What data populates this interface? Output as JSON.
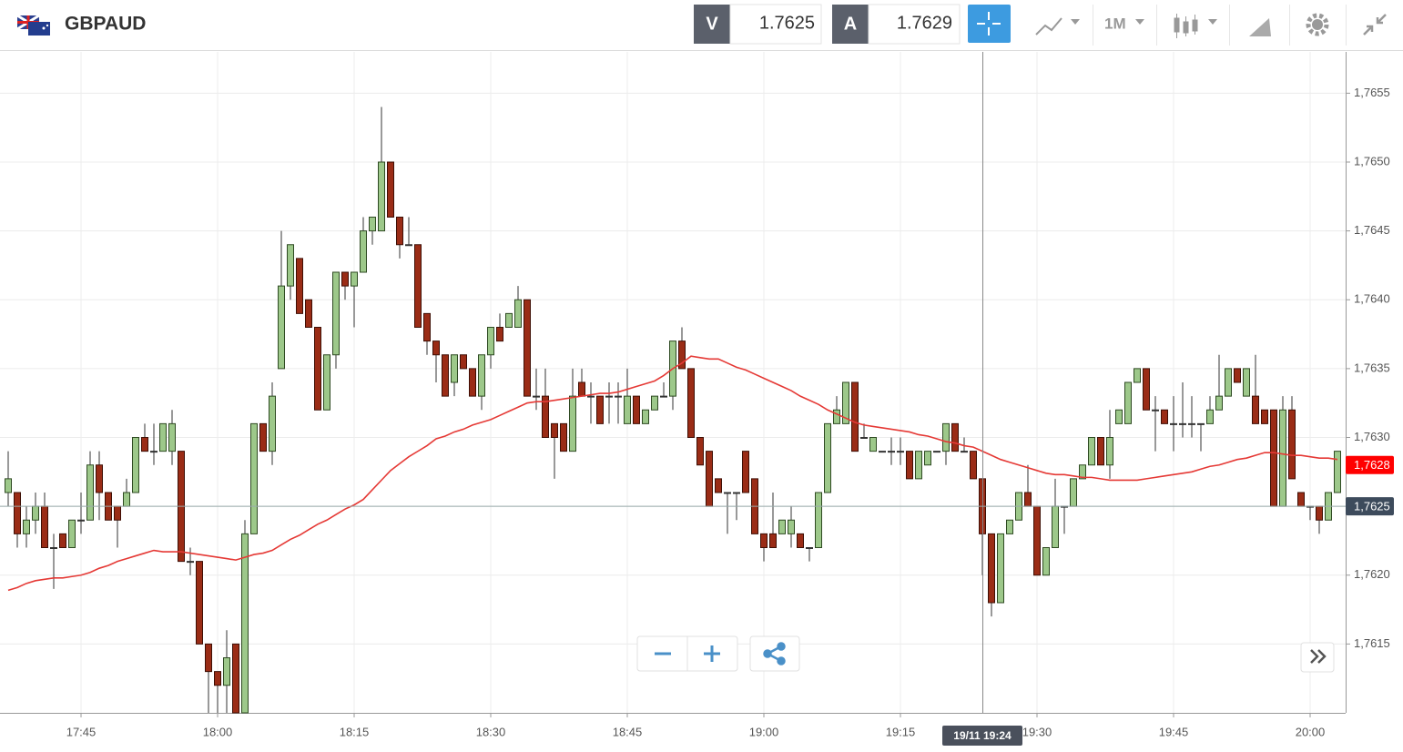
{
  "toolbar": {
    "symbol": "GBPAUD",
    "sell_label": "V",
    "sell_price": "1.7625",
    "buy_label": "A",
    "buy_price": "1.7629",
    "timeframe": "1M"
  },
  "chart_data": {
    "type": "candlestick",
    "categories": [
      null,
      null,
      null,
      null,
      null,
      null,
      null,
      null,
      "17:45",
      null,
      null,
      null,
      null,
      null,
      null,
      null,
      null,
      null,
      null,
      null,
      null,
      null,
      null,
      "18:00",
      null,
      null,
      null,
      null,
      null,
      null,
      null,
      null,
      null,
      null,
      null,
      null,
      null,
      null,
      "18:15",
      null,
      null,
      null,
      null,
      null,
      null,
      null,
      null,
      null,
      null,
      null,
      null,
      null,
      null,
      "18:30",
      null,
      null,
      null,
      null,
      null,
      null,
      null,
      null,
      null,
      null,
      null,
      null,
      null,
      null,
      "18:45",
      null,
      null,
      null,
      null,
      null,
      null,
      null,
      null,
      null,
      null,
      null,
      null,
      null,
      null,
      "19:00",
      null,
      null,
      null,
      null,
      null,
      null,
      null,
      null,
      null,
      null,
      null,
      null,
      null,
      null,
      "19:15",
      null,
      null,
      null,
      null,
      null,
      null,
      null,
      null,
      null,
      null,
      null,
      null,
      null,
      null,
      "19:30",
      null,
      null,
      null,
      null,
      null,
      null,
      null,
      null,
      null,
      null,
      null,
      null,
      null,
      null,
      "19:45",
      null,
      null,
      null,
      null,
      null,
      null,
      null,
      null,
      null,
      null,
      null,
      null,
      null,
      null,
      "20:00",
      null,
      null,
      null
    ],
    "open": [
      1.7626,
      1.7626,
      1.7623,
      1.7624,
      1.7625,
      1.7622,
      1.7623,
      1.7622,
      1.7624,
      1.7624,
      1.7628,
      1.7626,
      1.7625,
      1.7625,
      1.7626,
      1.763,
      1.7629,
      1.7629,
      1.7629,
      1.7629,
      1.7621,
      1.7621,
      1.7615,
      1.7613,
      1.7612,
      1.7615,
      1.761,
      1.7623,
      1.7631,
      1.7629,
      1.7635,
      1.7641,
      1.7643,
      1.764,
      1.7638,
      1.7632,
      1.7636,
      1.7642,
      1.7641,
      1.7642,
      1.7645,
      1.7645,
      1.765,
      1.7646,
      1.7644,
      1.7644,
      1.7639,
      1.7637,
      1.7636,
      1.7634,
      1.7636,
      1.7635,
      1.7633,
      1.7636,
      1.7638,
      1.7638,
      1.7638,
      1.764,
      1.7633,
      1.7633,
      1.7631,
      1.7631,
      1.7629,
      1.7634,
      1.7633,
      1.7633,
      1.7633,
      1.7633,
      1.7631,
      1.7633,
      1.7631,
      1.7632,
      1.7633,
      1.7633,
      1.7637,
      1.7635,
      1.763,
      1.7629,
      1.7627,
      1.7626,
      1.7626,
      1.7629,
      1.7627,
      1.7623,
      1.7623,
      1.7623,
      1.7623,
      1.7623,
      1.7622,
      1.7622,
      1.7626,
      1.7631,
      1.7631,
      1.7634,
      1.763,
      1.7629,
      1.7629,
      1.7629,
      1.7629,
      1.7629,
      1.7627,
      1.7628,
      1.7629,
      1.7629,
      1.7631,
      1.7629,
      1.7629,
      1.7627,
      1.7623,
      1.7618,
      1.7623,
      1.7624,
      1.7626,
      1.7625,
      1.762,
      1.7622,
      1.7625,
      1.7625,
      1.7627,
      1.7628,
      1.763,
      1.7628,
      1.7631,
      1.7631,
      1.7634,
      1.7635,
      1.7632,
      1.7632,
      1.7631,
      1.7631,
      1.7631,
      1.7631,
      1.7631,
      1.7632,
      1.7633,
      1.7635,
      1.7633,
      1.7633,
      1.7632,
      1.7632,
      1.7625,
      1.7632,
      1.7626,
      1.7625,
      1.7625,
      1.7624,
      1.7626
    ],
    "high": [
      1.7629,
      1.7626,
      1.7625,
      1.7626,
      1.7626,
      1.7623,
      1.7623,
      1.7624,
      1.7626,
      1.7629,
      1.7629,
      1.7626,
      1.7625,
      1.7627,
      1.763,
      1.7631,
      1.7631,
      1.7631,
      1.7632,
      1.7629,
      1.7622,
      1.7621,
      1.7615,
      1.7613,
      1.7616,
      1.7615,
      1.7624,
      1.7631,
      1.7631,
      1.7634,
      1.7645,
      1.7644,
      1.7643,
      1.764,
      1.7638,
      1.7636,
      1.7642,
      1.7642,
      1.7642,
      1.7646,
      1.7646,
      1.7654,
      1.765,
      1.7646,
      1.7646,
      1.7644,
      1.7639,
      1.7637,
      1.7636,
      1.7636,
      1.7636,
      1.7635,
      1.7636,
      1.7638,
      1.7639,
      1.7639,
      1.7641,
      1.764,
      1.7635,
      1.7635,
      1.7631,
      1.7631,
      1.7635,
      1.7635,
      1.7634,
      1.7633,
      1.7634,
      1.7634,
      1.7635,
      1.7633,
      1.7632,
      1.7633,
      1.7634,
      1.7637,
      1.7638,
      1.7635,
      1.763,
      1.7629,
      1.7627,
      1.7626,
      1.7626,
      1.7629,
      1.7627,
      1.7623,
      1.7626,
      1.7624,
      1.7625,
      1.7623,
      1.7622,
      1.7626,
      1.7631,
      1.7633,
      1.7634,
      1.7634,
      1.7631,
      1.763,
      1.7629,
      1.763,
      1.763,
      1.7629,
      1.7629,
      1.7629,
      1.7629,
      1.7631,
      1.7631,
      1.763,
      1.7629,
      1.7627,
      1.7623,
      1.7623,
      1.7624,
      1.7626,
      1.7628,
      1.7625,
      1.7622,
      1.7627,
      1.7625,
      1.7627,
      1.7628,
      1.763,
      1.763,
      1.7632,
      1.7632,
      1.7634,
      1.7635,
      1.7635,
      1.7633,
      1.7632,
      1.7633,
      1.7634,
      1.7633,
      1.7631,
      1.7633,
      1.7636,
      1.7635,
      1.7635,
      1.7635,
      1.7636,
      1.7632,
      1.7632,
      1.7633,
      1.7633,
      1.7626,
      1.7625,
      1.7625,
      1.7626,
      1.7629
    ],
    "low": [
      1.7625,
      1.7622,
      1.7622,
      1.7623,
      1.7622,
      1.7619,
      1.7622,
      1.7622,
      1.7623,
      1.7624,
      1.7624,
      1.7624,
      1.7622,
      1.7625,
      1.7626,
      1.7629,
      1.7628,
      1.7629,
      1.7628,
      1.7621,
      1.762,
      1.7615,
      1.761,
      1.761,
      1.761,
      1.761,
      1.761,
      1.7623,
      1.7629,
      1.7628,
      1.7635,
      1.764,
      1.7639,
      1.7638,
      1.7632,
      1.7632,
      1.7635,
      1.764,
      1.7638,
      1.7642,
      1.7644,
      1.7645,
      1.7646,
      1.7643,
      1.7644,
      1.7638,
      1.7636,
      1.7634,
      1.7633,
      1.7633,
      1.7635,
      1.7633,
      1.7632,
      1.7635,
      1.7637,
      1.7638,
      1.7638,
      1.7633,
      1.7632,
      1.763,
      1.7627,
      1.7629,
      1.7629,
      1.7633,
      1.7631,
      1.7631,
      1.7631,
      1.7631,
      1.7631,
      1.7631,
      1.7631,
      1.7632,
      1.7633,
      1.7632,
      1.7635,
      1.763,
      1.7628,
      1.7625,
      1.7626,
      1.7623,
      1.7624,
      1.7626,
      1.7623,
      1.7621,
      1.7622,
      1.7623,
      1.7622,
      1.7622,
      1.7621,
      1.7622,
      1.7626,
      1.7631,
      1.7631,
      1.7629,
      1.763,
      1.7629,
      1.7629,
      1.7628,
      1.7628,
      1.7627,
      1.7627,
      1.7628,
      1.7629,
      1.7628,
      1.7629,
      1.7629,
      1.7627,
      1.762,
      1.7617,
      1.7618,
      1.7623,
      1.7624,
      1.7625,
      1.762,
      1.762,
      1.7622,
      1.7623,
      1.7625,
      1.7627,
      1.7628,
      1.7628,
      1.7627,
      1.7631,
      1.7631,
      1.7634,
      1.7632,
      1.7629,
      1.7631,
      1.7629,
      1.763,
      1.763,
      1.7629,
      1.7631,
      1.7632,
      1.7633,
      1.7634,
      1.7633,
      1.7631,
      1.7631,
      1.7625,
      1.7625,
      1.7627,
      1.7625,
      1.7624,
      1.7623,
      1.7624,
      1.7626
    ],
    "close": [
      1.7627,
      1.7623,
      1.7624,
      1.7625,
      1.7622,
      1.7622,
      1.7622,
      1.7624,
      1.7624,
      1.7628,
      1.7626,
      1.7624,
      1.7624,
      1.7626,
      1.763,
      1.7629,
      1.7629,
      1.7631,
      1.7631,
      1.7621,
      1.7621,
      1.7615,
      1.7613,
      1.7612,
      1.7614,
      1.761,
      1.7623,
      1.7631,
      1.7629,
      1.7633,
      1.7641,
      1.7644,
      1.7639,
      1.7638,
      1.7632,
      1.7636,
      1.7642,
      1.7641,
      1.7642,
      1.7645,
      1.7646,
      1.765,
      1.7646,
      1.7644,
      1.7644,
      1.7638,
      1.7637,
      1.7636,
      1.7633,
      1.7636,
      1.7635,
      1.7633,
      1.7636,
      1.7638,
      1.7637,
      1.7639,
      1.764,
      1.7633,
      1.7633,
      1.763,
      1.763,
      1.7629,
      1.7633,
      1.7633,
      1.7633,
      1.7631,
      1.7633,
      1.7633,
      1.7633,
      1.7631,
      1.7632,
      1.7633,
      1.7633,
      1.7637,
      1.7635,
      1.763,
      1.7628,
      1.7625,
      1.7626,
      1.7626,
      1.7626,
      1.7626,
      1.7623,
      1.7622,
      1.7622,
      1.7624,
      1.7624,
      1.7622,
      1.7622,
      1.7626,
      1.7631,
      1.7632,
      1.7634,
      1.7629,
      1.763,
      1.763,
      1.7629,
      1.7629,
      1.7629,
      1.7627,
      1.7629,
      1.7629,
      1.7629,
      1.7631,
      1.7629,
      1.7629,
      1.7627,
      1.7623,
      1.7618,
      1.7623,
      1.7624,
      1.7626,
      1.7625,
      1.762,
      1.7622,
      1.7625,
      1.7625,
      1.7627,
      1.7628,
      1.763,
      1.7628,
      1.763,
      1.7632,
      1.7634,
      1.7635,
      1.7632,
      1.7632,
      1.7631,
      1.7631,
      1.7631,
      1.7631,
      1.7631,
      1.7632,
      1.7633,
      1.7635,
      1.7634,
      1.7635,
      1.7631,
      1.7631,
      1.7625,
      1.7632,
      1.7627,
      1.7625,
      1.7625,
      1.7624,
      1.7626,
      1.7629
    ],
    "up_color": "#9dc88a",
    "down_color": "#9a2c16",
    "moving_average": {
      "color": "#e53935",
      "values": [
        1.76189,
        1.76191,
        1.76194,
        1.76196,
        1.76197,
        1.76198,
        1.76198,
        1.76199,
        1.762,
        1.76202,
        1.76205,
        1.76207,
        1.7621,
        1.76212,
        1.76214,
        1.76216,
        1.76218,
        1.76217,
        1.76217,
        1.76217,
        1.76216,
        1.76215,
        1.76214,
        1.76213,
        1.76212,
        1.76211,
        1.76213,
        1.76215,
        1.76216,
        1.76218,
        1.76222,
        1.76226,
        1.76229,
        1.76233,
        1.76237,
        1.7624,
        1.76244,
        1.76248,
        1.76251,
        1.76255,
        1.76262,
        1.76269,
        1.76276,
        1.76281,
        1.76286,
        1.7629,
        1.76294,
        1.76299,
        1.76301,
        1.76304,
        1.76306,
        1.76309,
        1.76311,
        1.76313,
        1.76316,
        1.76319,
        1.76322,
        1.76325,
        1.76326,
        1.76326,
        1.76327,
        1.76328,
        1.76329,
        1.7633,
        1.76331,
        1.76332,
        1.76332,
        1.76333,
        1.76335,
        1.76337,
        1.76339,
        1.76341,
        1.76345,
        1.7635,
        1.76354,
        1.76359,
        1.76358,
        1.76357,
        1.76357,
        1.76354,
        1.76351,
        1.76349,
        1.76346,
        1.76343,
        1.7634,
        1.76337,
        1.76334,
        1.7633,
        1.76327,
        1.76324,
        1.7632,
        1.76317,
        1.76314,
        1.76311,
        1.76309,
        1.76308,
        1.76307,
        1.76306,
        1.76305,
        1.76304,
        1.76302,
        1.76301,
        1.76299,
        1.76297,
        1.76296,
        1.76294,
        1.76293,
        1.7629,
        1.76287,
        1.76284,
        1.76282,
        1.7628,
        1.76278,
        1.76276,
        1.76274,
        1.76273,
        1.76273,
        1.76272,
        1.76271,
        1.76271,
        1.7627,
        1.76269,
        1.76269,
        1.76269,
        1.76269,
        1.7627,
        1.76271,
        1.76272,
        1.76273,
        1.76274,
        1.76275,
        1.76277,
        1.76279,
        1.7628,
        1.76282,
        1.76284,
        1.76285,
        1.76287,
        1.76289,
        1.76289,
        1.76288,
        1.76287,
        1.76287,
        1.76286,
        1.76285,
        1.76285,
        1.76284
      ]
    },
    "ylim": [
      1.761,
      1.7658
    ],
    "yticks": [
      {
        "value": 1.7615,
        "label": "1,7615"
      },
      {
        "value": 1.762,
        "label": "1,7620"
      },
      {
        "value": 1.7625,
        "label": "1,7625"
      },
      {
        "value": 1.763,
        "label": "1,7630"
      },
      {
        "value": 1.7635,
        "label": "1,7635"
      },
      {
        "value": 1.764,
        "label": "1,7640"
      },
      {
        "value": 1.7645,
        "label": "1,7645"
      },
      {
        "value": 1.765,
        "label": "1,7650"
      },
      {
        "value": 1.7655,
        "label": "1,7655"
      }
    ],
    "grid": true,
    "ma_price_label": {
      "value": 1.7628,
      "label": "1,7628",
      "color": "#ff0000"
    },
    "last_price_label": {
      "value": 1.7625,
      "label": "1,7625",
      "color": "#3d4b5c"
    },
    "crosshair_label": "19/11 19:24"
  }
}
